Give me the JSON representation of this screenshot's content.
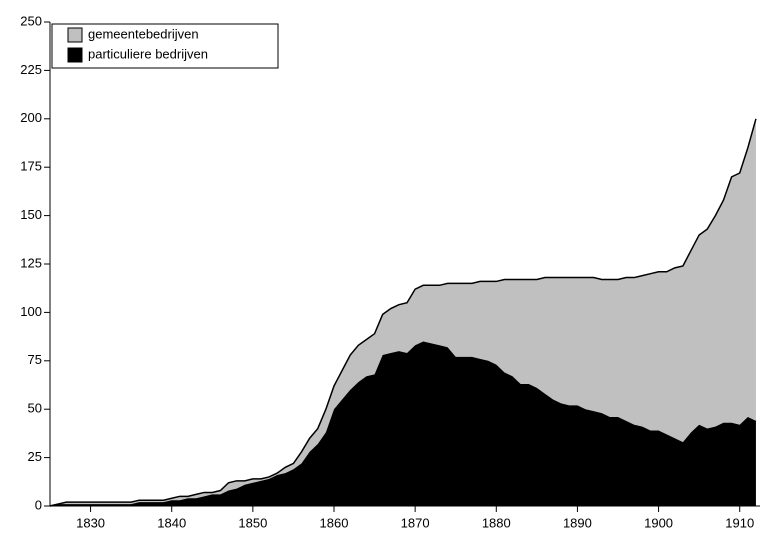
{
  "chart_data": {
    "type": "stacked_area",
    "x": [
      1825,
      1826,
      1827,
      1828,
      1829,
      1830,
      1831,
      1832,
      1833,
      1834,
      1835,
      1836,
      1837,
      1838,
      1839,
      1840,
      1841,
      1842,
      1843,
      1844,
      1845,
      1846,
      1847,
      1848,
      1849,
      1850,
      1851,
      1852,
      1853,
      1854,
      1855,
      1856,
      1857,
      1858,
      1859,
      1860,
      1861,
      1862,
      1863,
      1864,
      1865,
      1866,
      1867,
      1868,
      1869,
      1870,
      1871,
      1872,
      1873,
      1874,
      1875,
      1876,
      1877,
      1878,
      1879,
      1880,
      1881,
      1882,
      1883,
      1884,
      1885,
      1886,
      1887,
      1888,
      1889,
      1890,
      1891,
      1892,
      1893,
      1894,
      1895,
      1896,
      1897,
      1898,
      1899,
      1900,
      1901,
      1902,
      1903,
      1904,
      1905,
      1906,
      1907,
      1908,
      1909,
      1910,
      1911,
      1912
    ],
    "series": [
      {
        "name": "gemeentebedrijven",
        "color": "#c0c0c0",
        "values": [
          0,
          0,
          1,
          1,
          1,
          1,
          1,
          1,
          1,
          1,
          1,
          1,
          1,
          1,
          1,
          1,
          2,
          1,
          2,
          2,
          1,
          2,
          4,
          4,
          2,
          2,
          1,
          1,
          1,
          3,
          3,
          6,
          7,
          8,
          12,
          12,
          15,
          18,
          19,
          19,
          21,
          21,
          23,
          24,
          26,
          29,
          29,
          30,
          31,
          33,
          38,
          38,
          38,
          40,
          41,
          43,
          48,
          50,
          54,
          54,
          56,
          60,
          63,
          65,
          66,
          66,
          68,
          69,
          69,
          71,
          71,
          74,
          76,
          78,
          81,
          82,
          84,
          88,
          91,
          94,
          98,
          103,
          109,
          115,
          127,
          130,
          139,
          156
        ]
      },
      {
        "name": "particuliere bedrijven",
        "color": "#000000",
        "values": [
          0,
          1,
          1,
          1,
          1,
          1,
          1,
          1,
          1,
          1,
          1,
          2,
          2,
          2,
          2,
          3,
          3,
          4,
          4,
          5,
          6,
          6,
          8,
          9,
          11,
          12,
          13,
          14,
          16,
          17,
          19,
          22,
          28,
          32,
          38,
          50,
          55,
          60,
          64,
          67,
          68,
          78,
          79,
          80,
          79,
          83,
          85,
          84,
          83,
          82,
          77,
          77,
          77,
          76,
          75,
          73,
          69,
          67,
          63,
          63,
          61,
          58,
          55,
          53,
          52,
          52,
          50,
          49,
          48,
          46,
          46,
          44,
          42,
          41,
          39,
          39,
          37,
          35,
          33,
          38,
          42,
          40,
          41,
          43,
          43,
          42,
          46,
          44
        ]
      }
    ],
    "xlim": [
      1825,
      1912.5
    ],
    "xticks": [
      1830,
      1840,
      1850,
      1860,
      1870,
      1880,
      1890,
      1900,
      1910
    ],
    "ylim": [
      0,
      250
    ],
    "yticks": [
      0,
      25,
      50,
      75,
      100,
      125,
      150,
      175,
      200,
      225,
      250
    ],
    "legend": "top-left"
  }
}
